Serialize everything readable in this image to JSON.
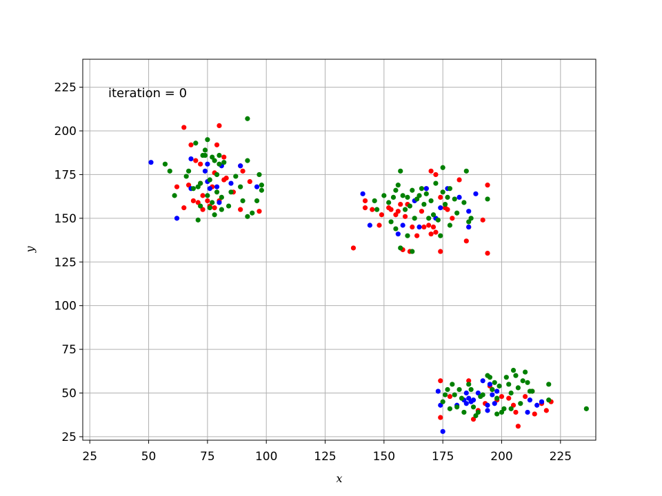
{
  "chart_data": {
    "type": "scatter",
    "title": "",
    "xlabel": "x",
    "ylabel": "y",
    "xlim": [
      22,
      240
    ],
    "ylim": [
      23,
      241
    ],
    "xticks": [
      25,
      50,
      75,
      100,
      125,
      150,
      175,
      200,
      225
    ],
    "yticks": [
      25,
      50,
      75,
      100,
      125,
      150,
      175,
      200,
      225
    ],
    "grid": true,
    "annotation": "iteration =  0",
    "series": [
      {
        "color": "#ff0000",
        "points": [
          [
            65,
            202
          ],
          [
            68,
            192
          ],
          [
            70,
            183
          ],
          [
            72,
            181
          ],
          [
            78,
            176
          ],
          [
            82,
            185
          ],
          [
            80,
            203
          ],
          [
            79,
            192
          ],
          [
            89,
            180
          ],
          [
            90,
            177
          ],
          [
            86,
            165
          ],
          [
            83,
            173
          ],
          [
            77,
            168
          ],
          [
            72,
            170
          ],
          [
            67,
            169
          ],
          [
            73,
            163
          ],
          [
            75,
            160
          ],
          [
            71,
            159
          ],
          [
            69,
            160
          ],
          [
            76,
            157
          ],
          [
            78,
            156
          ],
          [
            73,
            155
          ],
          [
            80,
            160
          ],
          [
            65,
            156
          ],
          [
            62,
            168
          ],
          [
            89,
            155
          ],
          [
            93,
            171
          ],
          [
            97,
            154
          ],
          [
            82,
            172
          ],
          [
            137,
            133
          ],
          [
            142,
            156
          ],
          [
            145,
            155
          ],
          [
            148,
            146
          ],
          [
            149,
            152
          ],
          [
            152,
            156
          ],
          [
            155,
            152
          ],
          [
            153,
            155
          ],
          [
            157,
            158
          ],
          [
            159,
            151
          ],
          [
            160,
            158
          ],
          [
            162,
            145
          ],
          [
            164,
            140
          ],
          [
            166,
            154
          ],
          [
            167,
            145
          ],
          [
            169,
            146
          ],
          [
            170,
            141
          ],
          [
            171,
            145
          ],
          [
            172,
            142
          ],
          [
            174,
            131
          ],
          [
            174,
            162
          ],
          [
            176,
            156
          ],
          [
            177,
            155
          ],
          [
            179,
            150
          ],
          [
            182,
            172
          ],
          [
            185,
            137
          ],
          [
            186,
            145
          ],
          [
            192,
            149
          ],
          [
            194,
            130
          ],
          [
            194,
            169
          ],
          [
            158,
            132
          ],
          [
            161,
            131
          ],
          [
            156,
            154
          ],
          [
            170,
            177
          ],
          [
            172,
            175
          ],
          [
            168,
            167
          ],
          [
            142,
            160
          ],
          [
            174,
            57
          ],
          [
            174,
            36
          ],
          [
            186,
            57
          ],
          [
            188,
            35
          ],
          [
            190,
            40
          ],
          [
            193,
            44
          ],
          [
            196,
            52
          ],
          [
            198,
            46
          ],
          [
            200,
            48
          ],
          [
            203,
            47
          ],
          [
            205,
            43
          ],
          [
            206,
            39
          ],
          [
            207,
            31
          ],
          [
            210,
            48
          ],
          [
            213,
            51
          ],
          [
            214,
            38
          ],
          [
            217,
            44
          ],
          [
            219,
            40
          ],
          [
            221,
            45
          ],
          [
            195,
            54
          ],
          [
            178,
            48
          ]
        ]
      },
      {
        "color": "#0000ff",
        "points": [
          [
            51,
            182
          ],
          [
            62,
            150
          ],
          [
            68,
            184
          ],
          [
            68,
            167
          ],
          [
            74,
            177
          ],
          [
            75,
            171
          ],
          [
            76,
            167
          ],
          [
            79,
            168
          ],
          [
            80,
            159
          ],
          [
            81,
            180
          ],
          [
            85,
            170
          ],
          [
            89,
            180
          ],
          [
            96,
            168
          ],
          [
            75,
            181
          ],
          [
            141,
            164
          ],
          [
            144,
            146
          ],
          [
            156,
            141
          ],
          [
            158,
            146
          ],
          [
            163,
            160
          ],
          [
            165,
            145
          ],
          [
            168,
            167
          ],
          [
            172,
            150
          ],
          [
            177,
            167
          ],
          [
            182,
            162
          ],
          [
            186,
            145
          ],
          [
            186,
            154
          ],
          [
            189,
            164
          ],
          [
            174,
            156
          ],
          [
            173,
            51
          ],
          [
            174,
            43
          ],
          [
            175,
            28
          ],
          [
            181,
            43
          ],
          [
            184,
            46
          ],
          [
            185,
            44
          ],
          [
            186,
            47
          ],
          [
            187,
            45
          ],
          [
            188,
            46
          ],
          [
            190,
            50
          ],
          [
            192,
            57
          ],
          [
            194,
            40
          ],
          [
            194,
            43
          ],
          [
            195,
            55
          ],
          [
            197,
            44
          ],
          [
            198,
            51
          ],
          [
            211,
            39
          ],
          [
            212,
            46
          ],
          [
            215,
            43
          ],
          [
            217,
            45
          ],
          [
            196,
            49
          ],
          [
            185,
            50
          ]
        ]
      },
      {
        "color": "#008000",
        "points": [
          [
            57,
            181
          ],
          [
            59,
            177
          ],
          [
            61,
            163
          ],
          [
            66,
            174
          ],
          [
            67,
            177
          ],
          [
            69,
            167
          ],
          [
            70,
            193
          ],
          [
            71,
            168
          ],
          [
            71,
            149
          ],
          [
            72,
            157
          ],
          [
            72,
            170
          ],
          [
            73,
            186
          ],
          [
            74,
            189
          ],
          [
            75,
            195
          ],
          [
            75,
            163
          ],
          [
            76,
            172
          ],
          [
            76,
            156
          ],
          [
            77,
            185
          ],
          [
            77,
            159
          ],
          [
            78,
            183
          ],
          [
            78,
            152
          ],
          [
            79,
            175
          ],
          [
            79,
            165
          ],
          [
            80,
            186
          ],
          [
            81,
            155
          ],
          [
            81,
            162
          ],
          [
            82,
            182
          ],
          [
            84,
            157
          ],
          [
            85,
            165
          ],
          [
            87,
            174
          ],
          [
            89,
            168
          ],
          [
            90,
            160
          ],
          [
            92,
            207
          ],
          [
            92,
            183
          ],
          [
            92,
            151
          ],
          [
            94,
            153
          ],
          [
            97,
            175
          ],
          [
            98,
            169
          ],
          [
            98,
            166
          ],
          [
            96,
            160
          ],
          [
            74,
            186
          ],
          [
            80,
            181
          ],
          [
            146,
            160
          ],
          [
            147,
            155
          ],
          [
            150,
            163
          ],
          [
            152,
            159
          ],
          [
            153,
            148
          ],
          [
            154,
            162
          ],
          [
            155,
            166
          ],
          [
            156,
            169
          ],
          [
            157,
            177
          ],
          [
            158,
            163
          ],
          [
            159,
            155
          ],
          [
            160,
            162
          ],
          [
            161,
            157
          ],
          [
            162,
            166
          ],
          [
            163,
            150
          ],
          [
            164,
            161
          ],
          [
            165,
            163
          ],
          [
            166,
            167
          ],
          [
            167,
            158
          ],
          [
            168,
            164
          ],
          [
            169,
            150
          ],
          [
            170,
            160
          ],
          [
            171,
            152
          ],
          [
            172,
            170
          ],
          [
            173,
            149
          ],
          [
            174,
            140
          ],
          [
            175,
            179
          ],
          [
            176,
            158
          ],
          [
            177,
            162
          ],
          [
            178,
            167
          ],
          [
            180,
            161
          ],
          [
            181,
            153
          ],
          [
            184,
            159
          ],
          [
            186,
            148
          ],
          [
            187,
            150
          ],
          [
            194,
            161
          ],
          [
            157,
            133
          ],
          [
            160,
            140
          ],
          [
            155,
            144
          ],
          [
            162,
            131
          ],
          [
            178,
            146
          ],
          [
            185,
            177
          ],
          [
            175,
            165
          ],
          [
            175,
            45
          ],
          [
            176,
            49
          ],
          [
            177,
            52
          ],
          [
            178,
            41
          ],
          [
            179,
            55
          ],
          [
            180,
            49
          ],
          [
            181,
            42
          ],
          [
            182,
            52
          ],
          [
            183,
            47
          ],
          [
            184,
            39
          ],
          [
            187,
            52
          ],
          [
            188,
            42
          ],
          [
            189,
            37
          ],
          [
            190,
            39
          ],
          [
            191,
            48
          ],
          [
            192,
            49
          ],
          [
            194,
            60
          ],
          [
            195,
            59
          ],
          [
            196,
            52
          ],
          [
            197,
            56
          ],
          [
            198,
            47
          ],
          [
            199,
            54
          ],
          [
            200,
            39
          ],
          [
            201,
            41
          ],
          [
            202,
            59
          ],
          [
            203,
            55
          ],
          [
            204,
            41
          ],
          [
            205,
            63
          ],
          [
            206,
            60
          ],
          [
            207,
            53
          ],
          [
            208,
            44
          ],
          [
            209,
            57
          ],
          [
            210,
            62
          ],
          [
            211,
            56
          ],
          [
            212,
            51
          ],
          [
            213,
            51
          ],
          [
            220,
            46
          ],
          [
            220,
            55
          ],
          [
            236,
            41
          ],
          [
            186,
            55
          ],
          [
            198,
            38
          ],
          [
            204,
            50
          ]
        ]
      }
    ]
  }
}
